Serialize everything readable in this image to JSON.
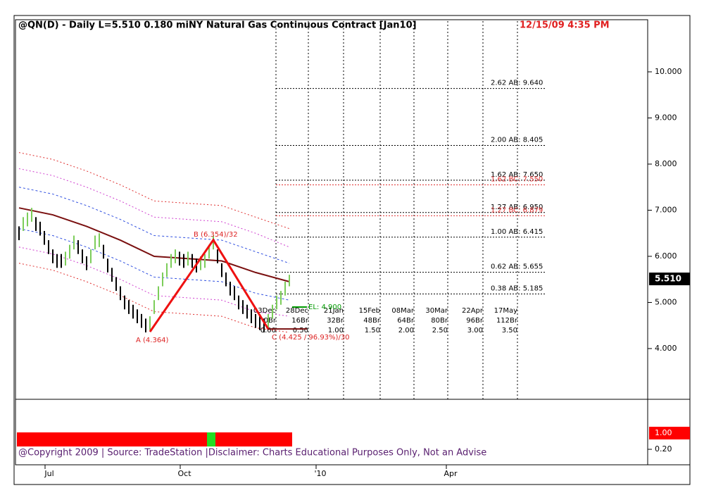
{
  "chart_data": {
    "type": "ohlc",
    "title": "@QN(D) - Daily  L=5.510  0.180  miNY Natural Gas Continuous Contract [Jan10]",
    "timestamp": "12/15/09 4:35 PM",
    "last_price": {
      "value": 5.51,
      "label": "5.510"
    },
    "ylim": [
      2.9,
      11.13
    ],
    "yticks": [
      {
        "value": 4,
        "label": "4.000"
      },
      {
        "value": 5,
        "label": "5.000"
      },
      {
        "value": 6,
        "label": "6.000"
      },
      {
        "value": 7,
        "label": "7.000"
      },
      {
        "value": 8,
        "label": "8.000"
      },
      {
        "value": 9,
        "label": "9.000"
      },
      {
        "value": 10,
        "label": "10.000"
      }
    ],
    "x_labels": [
      "Jul",
      "Oct",
      "'10",
      "Apr"
    ],
    "up_color": "#7ccd5a",
    "down_color": "#000000",
    "high": [
      6.65,
      6.85,
      6.95,
      7.05,
      6.85,
      6.75,
      6.55,
      6.35,
      6.15,
      6.05,
      6.05,
      6.1,
      6.25,
      6.45,
      6.35,
      6.15,
      6.0,
      6.15,
      6.45,
      6.5,
      6.25,
      5.95,
      5.75,
      5.55,
      5.35,
      5.15,
      5.05,
      4.95,
      4.85,
      4.75,
      4.65,
      4.7,
      5.05,
      5.35,
      5.65,
      5.85,
      6.05,
      6.15,
      6.1,
      6.05,
      6.1,
      6.05,
      5.95,
      6.0,
      6.05,
      6.25,
      6.45,
      6.15,
      5.85,
      5.65,
      5.45,
      5.35,
      5.15,
      5.05,
      4.95,
      4.85,
      4.75,
      4.7,
      4.65,
      4.75,
      4.95,
      5.15,
      5.25,
      5.45,
      5.6
    ],
    "low": [
      6.35,
      6.55,
      6.65,
      6.75,
      6.55,
      6.45,
      6.25,
      6.05,
      5.85,
      5.75,
      5.75,
      5.8,
      5.95,
      6.15,
      6.05,
      5.85,
      5.7,
      5.85,
      6.15,
      6.2,
      5.95,
      5.65,
      5.45,
      5.25,
      5.05,
      4.85,
      4.75,
      4.65,
      4.55,
      4.45,
      4.35,
      4.4,
      4.75,
      5.05,
      5.35,
      5.55,
      5.75,
      5.85,
      5.8,
      5.75,
      5.8,
      5.75,
      5.65,
      5.7,
      5.75,
      5.95,
      6.15,
      5.85,
      5.55,
      5.35,
      5.15,
      5.05,
      4.85,
      4.75,
      4.65,
      4.55,
      4.45,
      4.4,
      4.35,
      4.45,
      4.65,
      4.85,
      4.95,
      5.15,
      5.35
    ],
    "band_index": [
      0,
      8,
      16,
      24,
      32,
      40,
      48,
      56,
      64
    ],
    "bands": [
      {
        "color": "#e03030",
        "dash": "2,3",
        "values": [
          8.25,
          8.1,
          7.85,
          7.55,
          7.2,
          7.15,
          7.1,
          6.85,
          6.6
        ]
      },
      {
        "color": "#d040d0",
        "dash": "2,3",
        "values": [
          7.9,
          7.75,
          7.5,
          7.2,
          6.85,
          6.8,
          6.75,
          6.5,
          6.2
        ]
      },
      {
        "color": "#3050e0",
        "dash": "3,3",
        "values": [
          7.5,
          7.35,
          7.1,
          6.8,
          6.45,
          6.4,
          6.35,
          6.1,
          5.85
        ]
      },
      {
        "color": "#7a1010",
        "dash": "",
        "values": [
          7.05,
          6.9,
          6.65,
          6.35,
          6.0,
          5.95,
          5.9,
          5.65,
          5.45
        ]
      },
      {
        "color": "#3050e0",
        "dash": "3,3",
        "values": [
          6.6,
          6.45,
          6.2,
          5.9,
          5.55,
          5.5,
          5.45,
          5.2,
          5.05
        ]
      },
      {
        "color": "#d040d0",
        "dash": "2,3",
        "values": [
          6.2,
          6.05,
          5.8,
          5.5,
          5.15,
          5.1,
          5.05,
          4.8,
          4.7
        ]
      },
      {
        "color": "#e03030",
        "dash": "2,3",
        "values": [
          5.85,
          5.7,
          5.45,
          5.15,
          4.8,
          4.75,
          4.7,
          4.45,
          4.35
        ]
      }
    ],
    "pattern": [
      {
        "label": "A (4.364)",
        "value": 4.364,
        "bar": 31
      },
      {
        "label": "B (6.354)/32",
        "value": 6.354,
        "bar": 46
      },
      {
        "label": "C (4.425 / 96.93%)/30",
        "value": 4.425,
        "bar": 59
      }
    ],
    "levels": [
      {
        "label": "2.62 AB: 9.640",
        "value": 9.64,
        "color": "#000000"
      },
      {
        "label": "2.00 AB: 8.405",
        "value": 8.405,
        "color": "#000000"
      },
      {
        "label": "1.62 AB: 7.650",
        "value": 7.65,
        "color": "#000000"
      },
      {
        "label": "1.62 BC: 7.550",
        "value": 7.55,
        "color": "#e03030"
      },
      {
        "label": "1.27 AB: 6.950",
        "value": 6.95,
        "color": "#000000"
      },
      {
        "label": "1.27 BC: 6.879",
        "value": 6.879,
        "color": "#e03030"
      },
      {
        "label": "1.00 AB: 6.415",
        "value": 6.415,
        "color": "#000000"
      },
      {
        "label": "0.62 AB: 5.655",
        "value": 5.655,
        "color": "#000000"
      },
      {
        "label": "0.38 AB: 5.185",
        "value": 5.185,
        "color": "#000000"
      }
    ],
    "entry": {
      "label": "EL: 4.900",
      "value": 4.9
    },
    "projections": [
      {
        "date": "03Dec",
        "bars": "0Br",
        "ratio": "0.00"
      },
      {
        "date": "28Dec",
        "bars": "16Br",
        "ratio": "0.50"
      },
      {
        "date": "21Jan",
        "bars": "32Br",
        "ratio": "1.00"
      },
      {
        "date": "15Feb",
        "bars": "48Br",
        "ratio": "1.50"
      },
      {
        "date": "08Mar",
        "bars": "64Br",
        "ratio": "2.00"
      },
      {
        "date": "30Mar",
        "bars": "80Br",
        "ratio": "2.50"
      },
      {
        "date": "22Apr",
        "bars": "96Br",
        "ratio": "3.00"
      },
      {
        "date": "17May",
        "bars": "112Br",
        "ratio": "3.50"
      }
    ],
    "indicator": {
      "last": {
        "value": 1,
        "label": "1.00"
      },
      "ticks": [
        {
          "value": 0.2,
          "label": "0.20"
        }
      ],
      "green_bars": [
        45,
        46
      ]
    },
    "footer": "@Copyright 2009 | Source: TradeStation |Disclaimer: Charts Educational Purposes Only, Not an Advise"
  }
}
